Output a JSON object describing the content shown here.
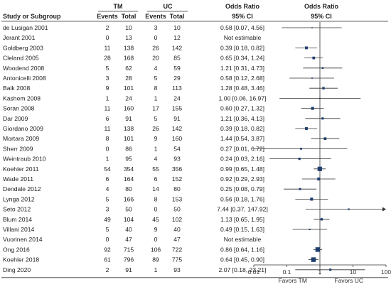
{
  "chart_data": {
    "type": "forest",
    "headers": {
      "study": "Study or Subgroup",
      "group1": "TM",
      "group2": "UC",
      "events": "Events",
      "total": "Total",
      "effect": "Odds Ratio",
      "effect_ci": "95% CI",
      "plot_title": "Odds Ratio",
      "plot_ci": "95% CI"
    },
    "scale": "log",
    "xlim": [
      0.01,
      100
    ],
    "ticks": [
      "0.01",
      "0.1",
      "1",
      "10",
      "100"
    ],
    "favors_left": "Favors  TM",
    "favors_right": "Favors  UC",
    "colors": {
      "marker": "#1f3f6e",
      "line": "#333333"
    },
    "studies": [
      {
        "study": "de Lusigan 2001",
        "tm_events": "2",
        "tm_total": "10",
        "uc_events": "3",
        "uc_total": "10",
        "or_text": "0.58 [0.07, 4.56]",
        "or": 0.58,
        "lo": 0.07,
        "hi": 4.56
      },
      {
        "study": "Jerant 2001",
        "tm_events": "0",
        "tm_total": "13",
        "uc_events": "0",
        "uc_total": "12",
        "or_text": "Not estimable",
        "or": null,
        "lo": null,
        "hi": null
      },
      {
        "study": "Goldberg 2003",
        "tm_events": "11",
        "tm_total": "138",
        "uc_events": "26",
        "uc_total": "142",
        "or_text": "0.39 [0.18, 0.82]",
        "or": 0.39,
        "lo": 0.18,
        "hi": 0.82
      },
      {
        "study": "Cleland 2005",
        "tm_events": "28",
        "tm_total": "168",
        "uc_events": "20",
        "uc_total": "85",
        "or_text": "0.65 [0.34, 1.24]",
        "or": 0.65,
        "lo": 0.34,
        "hi": 1.24
      },
      {
        "study": "Woodend 2008",
        "tm_events": "5",
        "tm_total": "62",
        "uc_events": "4",
        "uc_total": "59",
        "or_text": "1.21 [0.31, 4.73]",
        "or": 1.21,
        "lo": 0.31,
        "hi": 4.73
      },
      {
        "study": "Antonicelli 2008",
        "tm_events": "3",
        "tm_total": "28",
        "uc_events": "5",
        "uc_total": "29",
        "or_text": "0.58 [0.12, 2.68]",
        "or": 0.58,
        "lo": 0.12,
        "hi": 2.68
      },
      {
        "study": "Balk 2008",
        "tm_events": "9",
        "tm_total": "101",
        "uc_events": "8",
        "uc_total": "113",
        "or_text": "1.28 [0.48, 3.46]",
        "or": 1.28,
        "lo": 0.48,
        "hi": 3.46
      },
      {
        "study": "Kashem 2008",
        "tm_events": "1",
        "tm_total": "24",
        "uc_events": "1",
        "uc_total": "24",
        "or_text": "1.00 [0.06, 16.97]",
        "or": 1.0,
        "lo": 0.06,
        "hi": 16.97
      },
      {
        "study": "Soran 2008",
        "tm_events": "11",
        "tm_total": "160",
        "uc_events": "17",
        "uc_total": "155",
        "or_text": "0.60 [0.27, 1.32]",
        "or": 0.6,
        "lo": 0.27,
        "hi": 1.32
      },
      {
        "study": "Dar 2009",
        "tm_events": "6",
        "tm_total": "91",
        "uc_events": "5",
        "uc_total": "91",
        "or_text": "1.21 [0.36, 4.13]",
        "or": 1.21,
        "lo": 0.36,
        "hi": 4.13
      },
      {
        "study": "Giordano 2009",
        "tm_events": "11",
        "tm_total": "138",
        "uc_events": "26",
        "uc_total": "142",
        "or_text": "0.39 [0.18, 0.82]",
        "or": 0.39,
        "lo": 0.18,
        "hi": 0.82
      },
      {
        "study": "Mortara 2009",
        "tm_events": "8",
        "tm_total": "101",
        "uc_events": "9",
        "uc_total": "160",
        "or_text": "1.44 [0.54, 3.87]",
        "or": 1.44,
        "lo": 0.54,
        "hi": 3.87
      },
      {
        "study": "Sherr 2009",
        "tm_events": "0",
        "tm_total": "86",
        "uc_events": "1",
        "uc_total": "54",
        "or_text": "0.27 [0.01, 6.72]",
        "or": 0.27,
        "lo": 0.01,
        "hi": 6.72
      },
      {
        "study": "Weintraub 2010",
        "tm_events": "1",
        "tm_total": "95",
        "uc_events": "4",
        "uc_total": "93",
        "or_text": "0.24 [0.03, 2.16]",
        "or": 0.24,
        "lo": 0.03,
        "hi": 2.16
      },
      {
        "study": "Koehler 2011",
        "tm_events": "54",
        "tm_total": "354",
        "uc_events": "55",
        "uc_total": "356",
        "or_text": "0.99 [0.65, 1.48]",
        "or": 0.99,
        "lo": 0.65,
        "hi": 1.48
      },
      {
        "study": "Wade 2011",
        "tm_events": "6",
        "tm_total": "164",
        "uc_events": "6",
        "uc_total": "152",
        "or_text": "0.92 [0.29, 2.93]",
        "or": 0.92,
        "lo": 0.29,
        "hi": 2.93
      },
      {
        "study": "Dendale 2012",
        "tm_events": "4",
        "tm_total": "80",
        "uc_events": "14",
        "uc_total": "80",
        "or_text": "0.25 [0.08, 0.79]",
        "or": 0.25,
        "lo": 0.08,
        "hi": 0.79
      },
      {
        "study": "Lynga 2012",
        "tm_events": "5",
        "tm_total": "166",
        "uc_events": "8",
        "uc_total": "153",
        "or_text": "0.56 [0.18, 1.76]",
        "or": 0.56,
        "lo": 0.18,
        "hi": 1.76
      },
      {
        "study": "Seto 2012",
        "tm_events": "3",
        "tm_total": "50",
        "uc_events": "0",
        "uc_total": "50",
        "or_text": "7.44 [0.37, 147.92]",
        "or": 7.44,
        "lo": 0.37,
        "hi": 147.92
      },
      {
        "study": "Blum 2014",
        "tm_events": "49",
        "tm_total": "104",
        "uc_events": "45",
        "uc_total": "102",
        "or_text": "1.13 [0.65, 1.95]",
        "or": 1.13,
        "lo": 0.65,
        "hi": 1.95
      },
      {
        "study": "Villani 2014",
        "tm_events": "5",
        "tm_total": "40",
        "uc_events": "9",
        "uc_total": "40",
        "or_text": "0.49 [0.15, 1.63]",
        "or": 0.49,
        "lo": 0.15,
        "hi": 1.63
      },
      {
        "study": "Vuorinen 2014",
        "tm_events": "0",
        "tm_total": "47",
        "uc_events": "0",
        "uc_total": "47",
        "or_text": "Not estimable",
        "or": null,
        "lo": null,
        "hi": null
      },
      {
        "study": "Ong 2016",
        "tm_events": "92",
        "tm_total": "715",
        "uc_events": "106",
        "uc_total": "722",
        "or_text": "0.86 [0.64, 1.16]",
        "or": 0.86,
        "lo": 0.64,
        "hi": 1.16
      },
      {
        "study": "Koehler 2018",
        "tm_events": "61",
        "tm_total": "796",
        "uc_events": "89",
        "uc_total": "775",
        "or_text": "0.64 [0.45, 0.90]",
        "or": 0.64,
        "lo": 0.45,
        "hi": 0.9
      },
      {
        "study": "Ding 2020",
        "tm_events": "2",
        "tm_total": "91",
        "uc_events": "1",
        "uc_total": "93",
        "or_text": "2.07 [0.18, 23.21]",
        "or": 2.07,
        "lo": 0.18,
        "hi": 23.21
      }
    ]
  }
}
